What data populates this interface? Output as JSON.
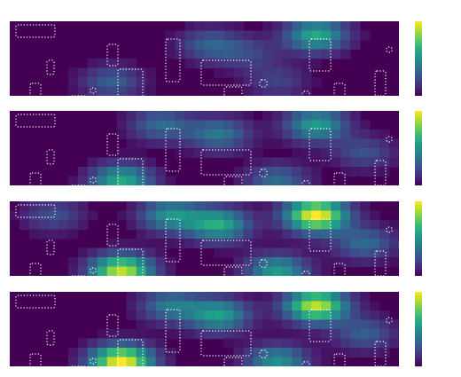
{
  "chart_data": {
    "type": "heatmap",
    "title": "",
    "xlabel": "",
    "ylabel": "",
    "colormap": "viridis",
    "colormap_stops": [
      "#440154",
      "#482878",
      "#3e4989",
      "#31688e",
      "#26828e",
      "#1f9e89",
      "#35b779",
      "#6ece58",
      "#b5de2b",
      "#fde725"
    ],
    "background_color": "#440154",
    "contour_color": "#ffffff",
    "contour_style": "dotted",
    "grid_cols": 40,
    "grid_rows": 8,
    "panels": [
      {
        "blobs": [
          {
            "c": 31,
            "r": 1,
            "w": 0.6
          },
          {
            "c": 24,
            "r": 3,
            "w": 0.2
          },
          {
            "c": 20,
            "r": 2,
            "w": 0.3
          },
          {
            "c": 10,
            "r": 6,
            "w": 0.3
          },
          {
            "c": 27,
            "r": 6,
            "w": 0.2
          }
        ]
      },
      {
        "blobs": [
          {
            "c": 31,
            "r": 1,
            "w": 0.55
          },
          {
            "c": 11,
            "r": 7,
            "w": 0.6
          },
          {
            "c": 15,
            "r": 1,
            "w": 0.35
          },
          {
            "c": 21,
            "r": 2,
            "w": 0.4
          },
          {
            "c": 27,
            "r": 7,
            "w": 0.35
          },
          {
            "c": 36,
            "r": 4,
            "w": 0.25
          }
        ]
      },
      {
        "blobs": [
          {
            "c": 31,
            "r": 1,
            "w": 1.0
          },
          {
            "c": 11,
            "r": 7,
            "w": 0.9
          },
          {
            "c": 21,
            "r": 2,
            "w": 0.6
          },
          {
            "c": 27,
            "r": 7,
            "w": 0.55
          },
          {
            "c": 16,
            "r": 1,
            "w": 0.5
          },
          {
            "c": 36,
            "r": 4,
            "w": 0.35
          },
          {
            "c": 4,
            "r": 1,
            "w": 0.25
          }
        ]
      },
      {
        "blobs": [
          {
            "c": 31,
            "r": 1,
            "w": 0.9
          },
          {
            "c": 11,
            "r": 7,
            "w": 1.0
          },
          {
            "c": 21,
            "r": 2,
            "w": 0.55
          },
          {
            "c": 27,
            "r": 7,
            "w": 0.5
          },
          {
            "c": 16,
            "r": 1,
            "w": 0.4
          },
          {
            "c": 36,
            "r": 4,
            "w": 0.3
          }
        ]
      }
    ],
    "contours": [
      {
        "cx": 29,
        "cy": 11,
        "rx": 22,
        "ry": 7
      },
      {
        "cx": 46,
        "cy": 52,
        "rx": 4,
        "ry": 8
      },
      {
        "cx": 29,
        "cy": 80,
        "rx": 6,
        "ry": 10
      },
      {
        "cx": 116,
        "cy": 38,
        "rx": 6,
        "ry": 12
      },
      {
        "cx": 136,
        "cy": 74,
        "rx": 14,
        "ry": 20
      },
      {
        "cx": 78,
        "cy": 90,
        "rx": 10,
        "ry": 6
      },
      {
        "cx": 94,
        "cy": 78,
        "rx": 3,
        "ry": 3
      },
      {
        "cx": 184,
        "cy": 44,
        "rx": 8,
        "ry": 24
      },
      {
        "cx": 244,
        "cy": 58,
        "rx": 28,
        "ry": 14
      },
      {
        "cx": 252,
        "cy": 82,
        "rx": 10,
        "ry": 8
      },
      {
        "cx": 228,
        "cy": 96,
        "rx": 3,
        "ry": 4
      },
      {
        "cx": 286,
        "cy": 70,
        "rx": 4,
        "ry": 4
      },
      {
        "cx": 304,
        "cy": 98,
        "rx": 14,
        "ry": 6
      },
      {
        "cx": 334,
        "cy": 82,
        "rx": 4,
        "ry": 3
      },
      {
        "cx": 350,
        "cy": 38,
        "rx": 12,
        "ry": 18
      },
      {
        "cx": 372,
        "cy": 80,
        "rx": 6,
        "ry": 10
      },
      {
        "cx": 418,
        "cy": 70,
        "rx": 6,
        "ry": 14
      },
      {
        "cx": 428,
        "cy": 32,
        "rx": 3,
        "ry": 3
      }
    ]
  }
}
